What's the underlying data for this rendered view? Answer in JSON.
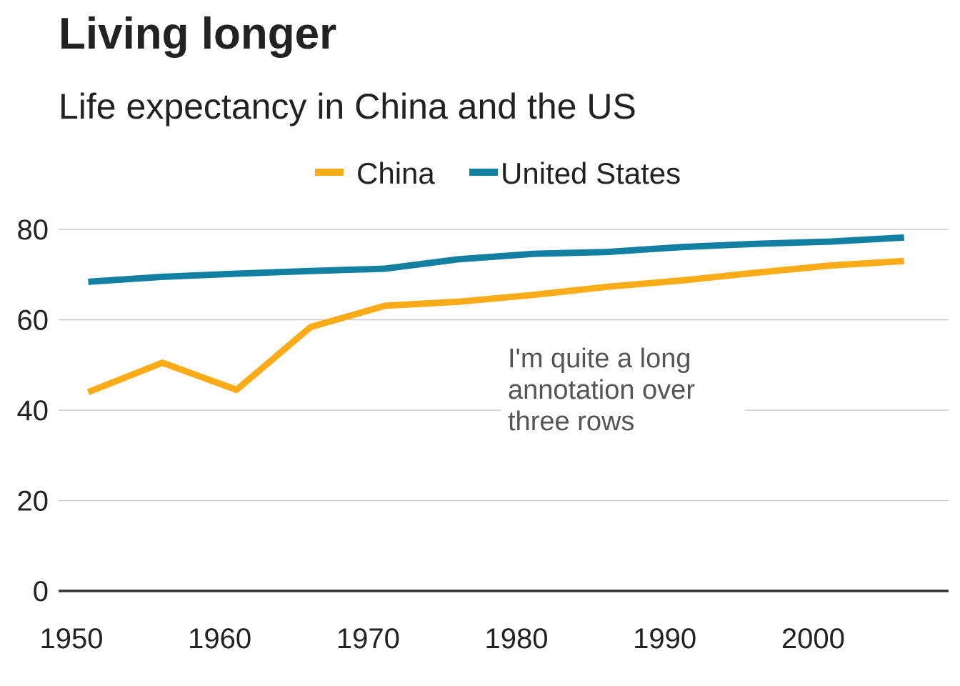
{
  "chart_data": {
    "type": "line",
    "title": "Living longer",
    "subtitle": "Life expectancy in China and the US",
    "xlabel": "",
    "ylabel": "",
    "xlim": [
      1950,
      2010
    ],
    "ylim": [
      0,
      80
    ],
    "x_ticks": [
      1950,
      1960,
      1970,
      1980,
      1990,
      2000
    ],
    "y_ticks": [
      0,
      20,
      40,
      60,
      80
    ],
    "grid": "horizontal",
    "legend": "top-center",
    "x": [
      1952,
      1957,
      1962,
      1967,
      1972,
      1977,
      1982,
      1987,
      1992,
      1997,
      2002,
      2007
    ],
    "series": [
      {
        "name": "China",
        "color": "#FAAB18",
        "values": [
          44.0,
          50.5,
          44.5,
          58.4,
          63.1,
          64.0,
          65.5,
          67.3,
          68.7,
          70.4,
          72.0,
          73.0
        ]
      },
      {
        "name": "United States",
        "color": "#1380A1",
        "values": [
          68.4,
          69.5,
          70.2,
          70.8,
          71.3,
          73.4,
          74.6,
          75.0,
          76.1,
          76.8,
          77.3,
          78.2
        ]
      }
    ],
    "annotation": {
      "lines": [
        "I'm quite a long",
        "annotation over",
        "three rows"
      ],
      "x": 1980,
      "y": 50
    }
  }
}
